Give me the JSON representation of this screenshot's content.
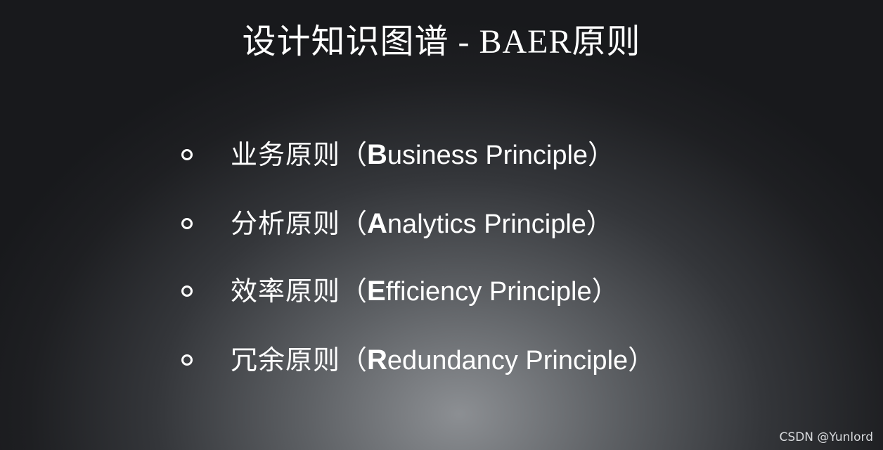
{
  "slide": {
    "title": "设计知识图谱 - BAER原则"
  },
  "principles": [
    {
      "cn": "业务原则",
      "open": "（",
      "initial": "B",
      "rest": "usiness Principle",
      "close": "）"
    },
    {
      "cn": "分析原则",
      "open": "（",
      "initial": "A",
      "rest": "nalytics Principle",
      "close": "）"
    },
    {
      "cn": "效率原则",
      "open": "（",
      "initial": "E",
      "rest": "fficiency Principle",
      "close": "）"
    },
    {
      "cn": "冗余原则",
      "open": "（",
      "initial": "R",
      "rest": "edundancy Principle",
      "close": "）"
    }
  ],
  "watermark": "CSDN @Yunlord",
  "colors": {
    "text": "#ffffff",
    "background_center": "#8c8f93",
    "background_edge": "#18191c"
  },
  "icons": {
    "bullet": "hollow-circle-bullet-icon"
  }
}
